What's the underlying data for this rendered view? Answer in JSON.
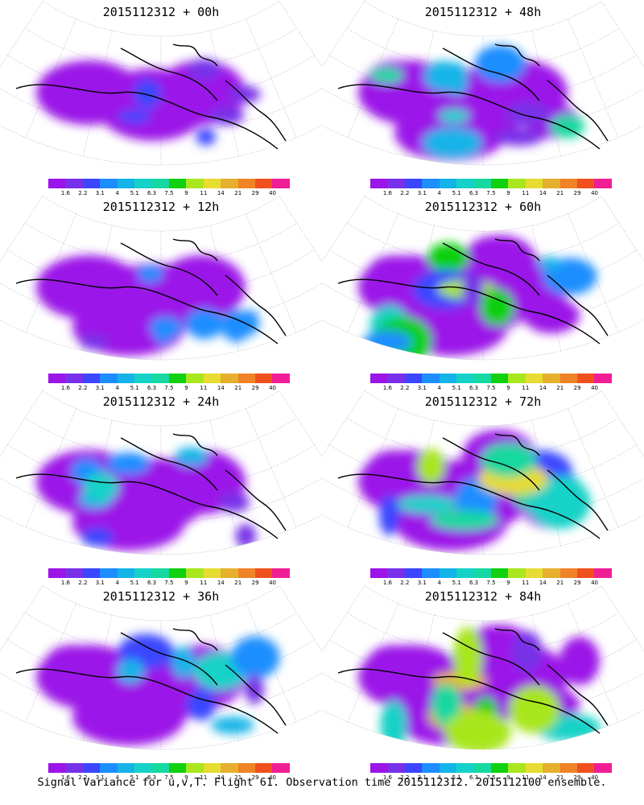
{
  "panels": [
    {
      "title": "2015112312 + 00h",
      "forecast_hour": 0
    },
    {
      "title": "2015112312 + 48h",
      "forecast_hour": 48
    },
    {
      "title": "2015112312 + 12h",
      "forecast_hour": 12
    },
    {
      "title": "2015112312 + 60h",
      "forecast_hour": 60
    },
    {
      "title": "2015112312 + 24h",
      "forecast_hour": 24
    },
    {
      "title": "2015112312 + 72h",
      "forecast_hour": 72
    },
    {
      "title": "2015112312 + 36h",
      "forecast_hour": 36
    },
    {
      "title": "2015112312 + 84h",
      "forecast_hour": 84
    }
  ],
  "colorbar": {
    "labels": [
      "1.6",
      "2.2",
      "3.1",
      "4",
      "5.1",
      "6.3",
      "7.5",
      "9",
      "11",
      "14",
      "21",
      "29",
      "40"
    ],
    "colors": [
      "#9b14e8",
      "#7830e8",
      "#3a46ff",
      "#1d8eff",
      "#14b4e8",
      "#14d2c8",
      "#16d8a0",
      "#10d010",
      "#a8e61e",
      "#e6dc32",
      "#e6af2d",
      "#f08228",
      "#f0501e",
      "#f01e96"
    ]
  },
  "footer": "Signal Variance for u,v,T. Flight 61. Observation time 2015112312. 2015112100 ensemble."
}
